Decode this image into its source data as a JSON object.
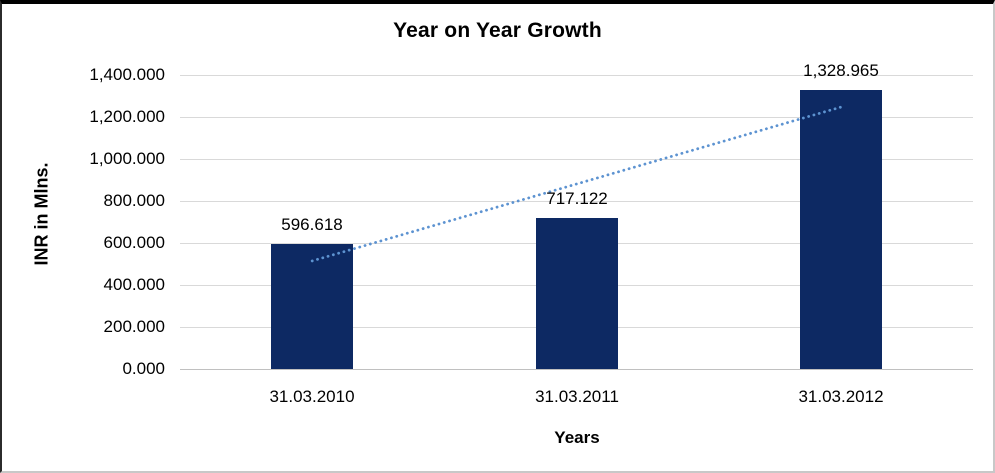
{
  "chart": {
    "title": "Year on Year Growth",
    "y_axis_title": "INR in Mlns.",
    "x_axis_title": "Years"
  },
  "chart_data": {
    "type": "bar",
    "title": "Year on Year Growth",
    "xlabel": "Years",
    "ylabel": "INR in Mlns.",
    "categories": [
      "31.03.2010",
      "31.03.2011",
      "31.03.2012"
    ],
    "series": [
      {
        "name": "INR in Mlns.",
        "values": [
          596.618,
          717.122,
          1328.965
        ]
      }
    ],
    "data_labels": [
      "596.618",
      "717.122",
      "1,328.965"
    ],
    "y_ticks": [
      "0.000",
      "200.000",
      "400.000",
      "600.000",
      "800.000",
      "1,000.000",
      "1,200.000",
      "1,400.000"
    ],
    "y_tick_values": [
      0,
      200,
      400,
      600,
      800,
      1000,
      1200,
      1400
    ],
    "ylim": [
      0,
      1400
    ],
    "grid": true,
    "legend": "none",
    "trendline": {
      "type": "linear",
      "style": "dotted",
      "color": "#5d93d1"
    },
    "colors": {
      "bar": "#0d2963",
      "gridline": "#d9d9d9",
      "axis_line": "#c0c0c0",
      "text": "#000000"
    }
  }
}
